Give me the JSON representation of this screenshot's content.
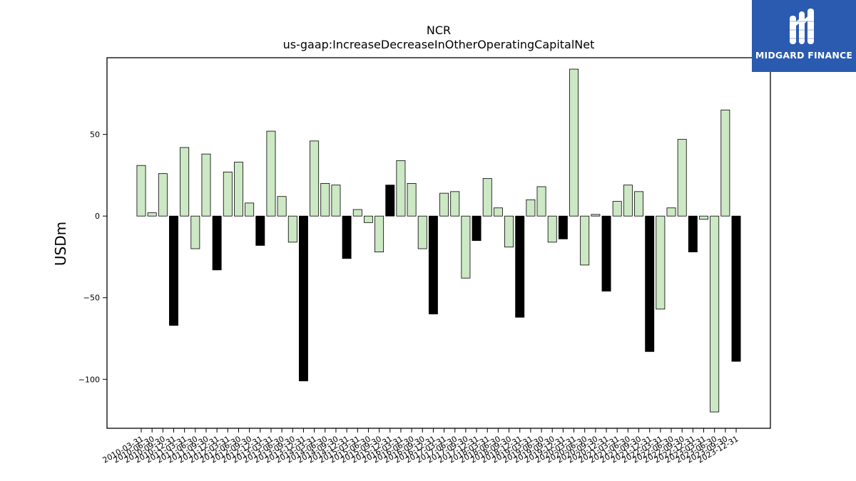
{
  "brand": {
    "name": "MIDGARD FINANCE",
    "bg_color": "#2b5bb0",
    "mark": "mh-monogram-icon"
  },
  "chart_data": {
    "type": "bar",
    "title": "NCR",
    "subtitle": "us-gaap:IncreaseDecreaseInOtherOperatingCapitalNet",
    "xlabel": "",
    "ylabel": "USDm",
    "ylim": [
      -130,
      97
    ],
    "yticks": [
      -100,
      -50,
      0,
      50
    ],
    "grid": false,
    "legend": "none",
    "colors": {
      "quarter_bar": "#cce8c4",
      "annual_bar": "#000000",
      "edge": "#000000"
    },
    "categories": [
      "2010-03-31",
      "2010-06-30",
      "2010-09-30",
      "2010-12-31",
      "2011-03-31",
      "2011-06-30",
      "2011-09-30",
      "2011-12-31",
      "2012-03-31",
      "2012-06-30",
      "2012-09-30",
      "2012-12-31",
      "2013-03-31",
      "2013-06-30",
      "2013-09-30",
      "2013-12-31",
      "2014-03-31",
      "2014-06-30",
      "2014-09-30",
      "2014-12-31",
      "2015-03-31",
      "2015-06-30",
      "2015-09-30",
      "2015-12-31",
      "2016-03-31",
      "2016-06-30",
      "2016-09-30",
      "2016-12-31",
      "2017-03-31",
      "2017-06-30",
      "2017-09-30",
      "2017-12-31",
      "2018-03-31",
      "2018-06-30",
      "2018-09-30",
      "2018-12-31",
      "2019-03-31",
      "2019-06-30",
      "2019-09-30",
      "2019-12-31",
      "2020-03-31",
      "2020-06-30",
      "2020-09-30",
      "2020-12-31",
      "2021-03-31",
      "2021-06-30",
      "2021-09-30",
      "2021-12-31",
      "2022-03-31",
      "2022-06-30",
      "2022-09-30",
      "2022-12-31",
      "2023-03-31",
      "2023-06-30",
      "2023-09-30",
      "2023-12-31"
    ],
    "values": [
      31,
      2,
      26,
      -67,
      42,
      -20,
      38,
      -33,
      27,
      33,
      8,
      -18,
      52,
      12,
      -16,
      -101,
      46,
      20,
      19,
      -26,
      4,
      -4,
      -22,
      19,
      34,
      20,
      -20,
      -60,
      14,
      15,
      -38,
      -15,
      23,
      5,
      -19,
      -62,
      10,
      18,
      -16,
      -14,
      90,
      -30,
      1,
      -46,
      9,
      19,
      15,
      -83,
      -57,
      5,
      47,
      -22,
      -2,
      -120,
      65,
      -89
    ],
    "highlight_black": [
      3,
      7,
      11,
      15,
      19,
      23,
      27,
      31,
      35,
      39,
      43,
      47,
      51,
      55
    ]
  }
}
